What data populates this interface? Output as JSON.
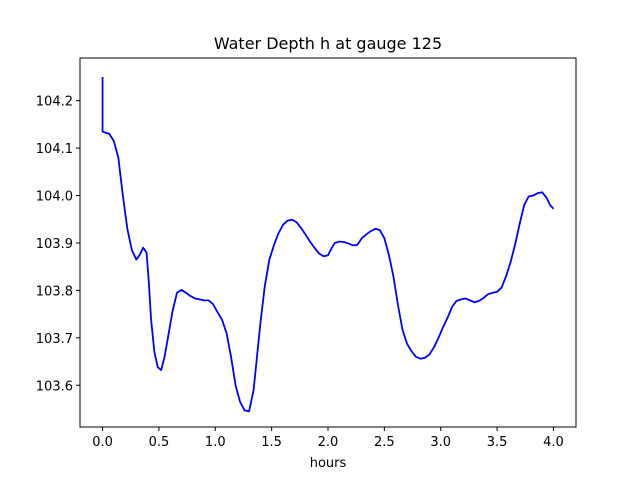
{
  "chart_data": {
    "type": "line",
    "title": "Water Depth h at gauge 125",
    "xlabel": "hours",
    "ylabel": "",
    "xlim": [
      -0.2,
      4.2
    ],
    "ylim": [
      103.512,
      104.29
    ],
    "x_ticks": [
      0.0,
      0.5,
      1.0,
      1.5,
      2.0,
      2.5,
      3.0,
      3.5,
      4.0
    ],
    "x_tick_labels": [
      "0.0",
      "0.5",
      "1.0",
      "1.5",
      "2.0",
      "2.5",
      "3.0",
      "3.5",
      "4.0"
    ],
    "y_ticks": [
      103.6,
      103.7,
      103.8,
      103.9,
      104.0,
      104.1,
      104.2
    ],
    "y_tick_labels": [
      "103.6",
      "103.7",
      "103.8",
      "103.9",
      "104.0",
      "104.1",
      "104.2"
    ],
    "grid": false,
    "legend": "none",
    "series": [
      {
        "color": "#0000ff",
        "x": [
          0.0,
          0.0,
          0.02,
          0.06,
          0.1,
          0.14,
          0.18,
          0.22,
          0.26,
          0.3,
          0.33,
          0.36,
          0.39,
          0.41,
          0.43,
          0.46,
          0.49,
          0.52,
          0.55,
          0.58,
          0.62,
          0.66,
          0.7,
          0.74,
          0.78,
          0.82,
          0.86,
          0.9,
          0.94,
          0.98,
          1.02,
          1.06,
          1.1,
          1.14,
          1.18,
          1.22,
          1.26,
          1.3,
          1.34,
          1.37,
          1.4,
          1.44,
          1.48,
          1.52,
          1.56,
          1.6,
          1.64,
          1.68,
          1.72,
          1.76,
          1.8,
          1.84,
          1.88,
          1.92,
          1.96,
          2.0,
          2.03,
          2.06,
          2.1,
          2.14,
          2.18,
          2.22,
          2.26,
          2.3,
          2.34,
          2.38,
          2.42,
          2.46,
          2.5,
          2.54,
          2.58,
          2.62,
          2.66,
          2.7,
          2.74,
          2.78,
          2.82,
          2.86,
          2.9,
          2.94,
          2.98,
          3.02,
          3.06,
          3.1,
          3.14,
          3.18,
          3.22,
          3.26,
          3.3,
          3.34,
          3.38,
          3.42,
          3.46,
          3.5,
          3.54,
          3.58,
          3.62,
          3.66,
          3.7,
          3.74,
          3.78,
          3.82,
          3.86,
          3.9,
          3.94,
          3.97,
          4.0
        ],
        "y": [
          104.25,
          104.135,
          104.133,
          104.13,
          104.115,
          104.08,
          104.0,
          103.93,
          103.885,
          103.865,
          103.875,
          103.89,
          103.88,
          103.82,
          103.74,
          103.67,
          103.638,
          103.632,
          103.66,
          103.7,
          103.755,
          103.795,
          103.801,
          103.795,
          103.788,
          103.783,
          103.781,
          103.779,
          103.779,
          103.771,
          103.754,
          103.738,
          103.71,
          103.66,
          103.6,
          103.565,
          103.547,
          103.545,
          103.59,
          103.66,
          103.73,
          103.81,
          103.865,
          103.895,
          103.92,
          103.938,
          103.947,
          103.949,
          103.944,
          103.932,
          103.918,
          103.903,
          103.89,
          103.878,
          103.872,
          103.874,
          103.888,
          103.9,
          103.903,
          103.902,
          103.899,
          103.895,
          103.896,
          103.91,
          103.918,
          103.925,
          103.93,
          103.927,
          103.91,
          103.875,
          103.83,
          103.77,
          103.718,
          103.688,
          103.672,
          103.66,
          103.656,
          103.658,
          103.665,
          103.68,
          103.7,
          103.722,
          103.742,
          103.765,
          103.778,
          103.781,
          103.783,
          103.779,
          103.775,
          103.778,
          103.784,
          103.792,
          103.795,
          103.797,
          103.806,
          103.83,
          103.86,
          103.897,
          103.94,
          103.98,
          103.998,
          104.0,
          104.005,
          104.007,
          103.995,
          103.98,
          103.972
        ]
      }
    ]
  }
}
